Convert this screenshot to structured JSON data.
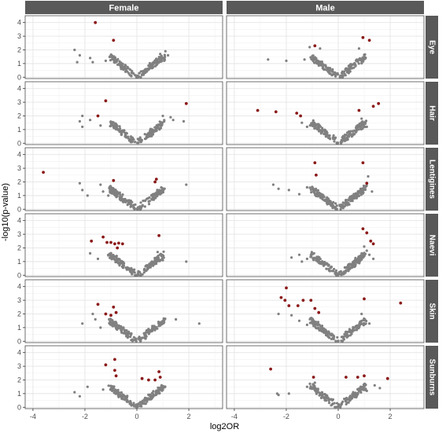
{
  "chart_data": {
    "type": "scatter",
    "title": "",
    "xlabel": "log2OR",
    "ylabel": "-log10(p-value)",
    "xlim": [
      -4.3,
      3.3
    ],
    "ylim": [
      -0.1,
      4.5
    ],
    "xticks": [
      -4,
      -2,
      0,
      2
    ],
    "yticks": [
      0,
      1,
      2,
      3,
      4
    ],
    "grid": true,
    "columns": [
      "Female",
      "Male"
    ],
    "rows": [
      "Eye",
      "Hair",
      "Lentigines",
      "Naevi",
      "Skin",
      "Sunburns"
    ],
    "colors": {
      "nonsignificant": "#808080",
      "significant": "#8b1a1a",
      "strip_background": "#595959",
      "panel_border": "#4d4d4d",
      "grid": "#e5e5e5"
    },
    "panels": [
      {
        "column": "Female",
        "row": "Eye",
        "significant": [
          [
            -1.6,
            4.0
          ],
          [
            -0.9,
            2.7
          ]
        ],
        "outliers": [
          [
            -2.4,
            2.0
          ],
          [
            -2.2,
            1.6
          ],
          [
            -1.8,
            1.4
          ],
          [
            -1.7,
            1.1
          ],
          [
            -2.3,
            1.1
          ],
          [
            -1.2,
            1.2
          ],
          [
            1.1,
            1.9
          ],
          [
            1.2,
            1.6
          ],
          [
            0.9,
            1.7
          ],
          [
            1.05,
            1.2
          ]
        ]
      },
      {
        "column": "Male",
        "row": "Eye",
        "significant": [
          [
            -0.9,
            2.3
          ],
          [
            0.95,
            2.9
          ],
          [
            1.2,
            2.7
          ]
        ],
        "outliers": [
          [
            -2.7,
            1.3
          ],
          [
            -2.0,
            1.2
          ],
          [
            -1.3,
            1.3
          ],
          [
            -1.1,
            2.2
          ],
          [
            -0.7,
            2.1
          ],
          [
            0.8,
            2.1
          ],
          [
            1.0,
            1.5
          ],
          [
            0.9,
            1.2
          ]
        ]
      },
      {
        "column": "Female",
        "row": "Hair",
        "significant": [
          [
            -1.2,
            3.1
          ],
          [
            -1.5,
            2.0
          ],
          [
            1.9,
            2.9
          ]
        ],
        "outliers": [
          [
            -2.1,
            2.0
          ],
          [
            -2.2,
            1.6
          ],
          [
            -2.1,
            1.2
          ],
          [
            -1.8,
            1.7
          ],
          [
            -1.4,
            1.3
          ],
          [
            1.0,
            2.0
          ],
          [
            1.3,
            1.9
          ],
          [
            1.4,
            1.7
          ],
          [
            1.8,
            1.6
          ],
          [
            0.8,
            1.2
          ]
        ]
      },
      {
        "column": "Male",
        "row": "Hair",
        "significant": [
          [
            -3.1,
            2.4
          ],
          [
            -2.4,
            2.3
          ],
          [
            -1.6,
            2.2
          ],
          [
            -1.45,
            2.0
          ],
          [
            0.8,
            2.4
          ],
          [
            1.35,
            2.7
          ],
          [
            1.55,
            2.9
          ]
        ],
        "outliers": [
          [
            -1.4,
            1.5
          ],
          [
            -1.2,
            1.2
          ],
          [
            -0.9,
            1.3
          ],
          [
            0.9,
            1.8
          ],
          [
            1.0,
            1.5
          ],
          [
            1.1,
            1.2
          ]
        ]
      },
      {
        "column": "Female",
        "row": "Lentigines",
        "significant": [
          [
            -3.6,
            2.7
          ],
          [
            -0.9,
            2.1
          ],
          [
            0.75,
            2.2
          ],
          [
            0.7,
            2.0
          ]
        ],
        "outliers": [
          [
            -2.2,
            1.9
          ],
          [
            -2.1,
            1.4
          ],
          [
            -1.9,
            1.0
          ],
          [
            -1.4,
            1.8
          ],
          [
            -1.3,
            1.3
          ],
          [
            -1.1,
            1.0
          ],
          [
            1.9,
            1.8
          ],
          [
            0.8,
            1.4
          ],
          [
            0.9,
            1.1
          ]
        ]
      },
      {
        "column": "Male",
        "row": "Lentigines",
        "significant": [
          [
            -0.9,
            3.4
          ],
          [
            -0.85,
            2.5
          ],
          [
            0.95,
            3.4
          ],
          [
            1.1,
            1.9
          ]
        ],
        "outliers": [
          [
            -2.5,
            1.8
          ],
          [
            -2.3,
            1.5
          ],
          [
            -1.9,
            1.4
          ],
          [
            -1.5,
            1.1
          ],
          [
            -1.2,
            1.6
          ],
          [
            1.15,
            2.4
          ],
          [
            1.3,
            1.3
          ],
          [
            0.9,
            1.5
          ]
        ]
      },
      {
        "column": "Female",
        "row": "Naevi",
        "significant": [
          [
            -1.3,
            2.8
          ],
          [
            -1.75,
            2.5
          ],
          [
            -1.15,
            2.4
          ],
          [
            -1.0,
            2.4
          ],
          [
            -0.85,
            2.3
          ],
          [
            -0.7,
            2.35
          ],
          [
            -0.55,
            2.3
          ],
          [
            -0.75,
            2.0
          ],
          [
            0.85,
            2.9
          ]
        ],
        "outliers": [
          [
            -1.8,
            1.6
          ],
          [
            -1.5,
            1.2
          ],
          [
            -1.1,
            1.5
          ],
          [
            0.8,
            1.7
          ],
          [
            1.0,
            1.1
          ],
          [
            1.9,
            1.0
          ]
        ]
      },
      {
        "column": "Male",
        "row": "Naevi",
        "significant": [
          [
            0.95,
            3.4
          ],
          [
            1.1,
            3.1
          ],
          [
            1.25,
            2.5
          ],
          [
            1.35,
            2.3
          ]
        ],
        "outliers": [
          [
            -1.8,
            1.3
          ],
          [
            -1.5,
            1.5
          ],
          [
            -1.2,
            1.2
          ],
          [
            -1.4,
            1.0
          ],
          [
            1.0,
            2.1
          ],
          [
            1.1,
            1.8
          ],
          [
            1.2,
            1.5
          ],
          [
            1.35,
            1.2
          ]
        ]
      },
      {
        "column": "Female",
        "row": "Skin",
        "significant": [
          [
            -1.5,
            2.7
          ],
          [
            -0.9,
            2.5
          ],
          [
            -0.8,
            2.1
          ],
          [
            -1.2,
            2.0
          ],
          [
            -1.0,
            1.9
          ]
        ],
        "outliers": [
          [
            -2.1,
            1.3
          ],
          [
            -1.7,
            2.0
          ],
          [
            -1.6,
            1.6
          ],
          [
            -1.4,
            1.0
          ],
          [
            1.5,
            1.6
          ],
          [
            2.4,
            1.3
          ],
          [
            0.9,
            1.2
          ],
          [
            1.0,
            1.5
          ]
        ]
      },
      {
        "column": "Male",
        "row": "Skin",
        "significant": [
          [
            -2.0,
            3.9
          ],
          [
            -2.2,
            3.2
          ],
          [
            -2.05,
            3.0
          ],
          [
            -1.9,
            2.6
          ],
          [
            -1.35,
            3.0
          ],
          [
            -1.55,
            2.6
          ],
          [
            -1.05,
            3.0
          ],
          [
            -0.9,
            2.4
          ],
          [
            -0.75,
            2.1
          ],
          [
            1.0,
            3.1
          ],
          [
            2.4,
            2.8
          ]
        ],
        "outliers": [
          [
            -2.3,
            2.0
          ],
          [
            -1.8,
            1.9
          ],
          [
            -1.5,
            1.5
          ],
          [
            -1.2,
            1.2
          ],
          [
            0.9,
            2.0
          ],
          [
            1.0,
            1.6
          ],
          [
            1.2,
            1.3
          ]
        ]
      },
      {
        "column": "Female",
        "row": "Sunburns",
        "significant": [
          [
            -0.85,
            3.5
          ],
          [
            -1.2,
            3.1
          ],
          [
            -0.85,
            2.7
          ],
          [
            -0.8,
            2.3
          ],
          [
            0.2,
            2.1
          ],
          [
            0.45,
            2.0
          ],
          [
            0.85,
            2.6
          ],
          [
            0.7,
            2.0
          ],
          [
            0.9,
            2.2
          ]
        ],
        "outliers": [
          [
            -2.4,
            1.1
          ],
          [
            -2.2,
            0.8
          ],
          [
            -1.9,
            1.5
          ],
          [
            -1.3,
            1.3
          ],
          [
            1.0,
            1.3
          ],
          [
            0.95,
            1.6
          ]
        ]
      },
      {
        "column": "Male",
        "row": "Sunburns",
        "significant": [
          [
            -2.6,
            2.8
          ],
          [
            -0.95,
            2.2
          ],
          [
            0.3,
            2.2
          ],
          [
            0.75,
            2.2
          ],
          [
            1.0,
            2.3
          ],
          [
            1.9,
            2.1
          ]
        ],
        "outliers": [
          [
            -2.35,
            1.0
          ],
          [
            -2.3,
            0.9
          ],
          [
            -1.9,
            1.0
          ],
          [
            -1.2,
            1.5
          ],
          [
            -0.9,
            1.8
          ],
          [
            1.4,
            1.6
          ],
          [
            1.6,
            1.4
          ],
          [
            1.1,
            1.2
          ]
        ]
      }
    ]
  }
}
